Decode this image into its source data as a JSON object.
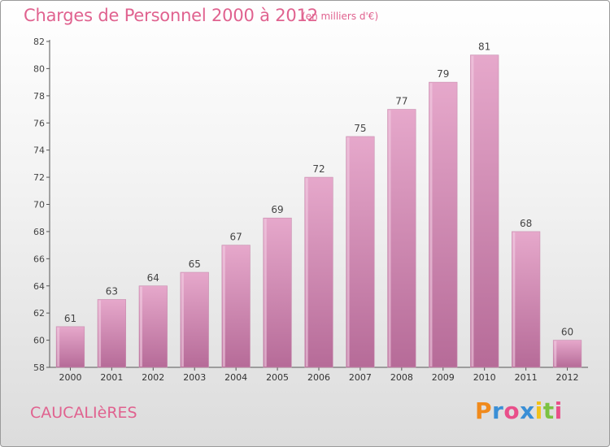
{
  "header": {
    "title": "Charges de Personnel 2000 à 2012",
    "subtitle": "(en milliers d'€)"
  },
  "footer": {
    "commune": "CAUCALIèRES",
    "logo_letters": [
      "P",
      "r",
      "o",
      "x",
      "i",
      "t",
      "i"
    ],
    "logo_colors": [
      "#f08a1c",
      "#3a8fd6",
      "#e94f8a",
      "#3a8fd6",
      "#f2c21a",
      "#7cc242",
      "#e94f8a"
    ]
  },
  "colors": {
    "bar_top": "#e6a8cb",
    "bar_bottom": "#b66b98",
    "title": "#e0628f"
  },
  "chart_data": {
    "type": "bar",
    "categories": [
      "2000",
      "2001",
      "2002",
      "2003",
      "2004",
      "2005",
      "2006",
      "2007",
      "2008",
      "2009",
      "2010",
      "2011",
      "2012"
    ],
    "values": [
      61,
      63,
      64,
      65,
      67,
      69,
      72,
      75,
      77,
      79,
      81,
      68,
      60
    ],
    "ylim": [
      58,
      82
    ],
    "yticks": [
      58,
      60,
      62,
      64,
      66,
      68,
      70,
      72,
      74,
      76,
      78,
      80,
      82
    ],
    "grid": false
  }
}
